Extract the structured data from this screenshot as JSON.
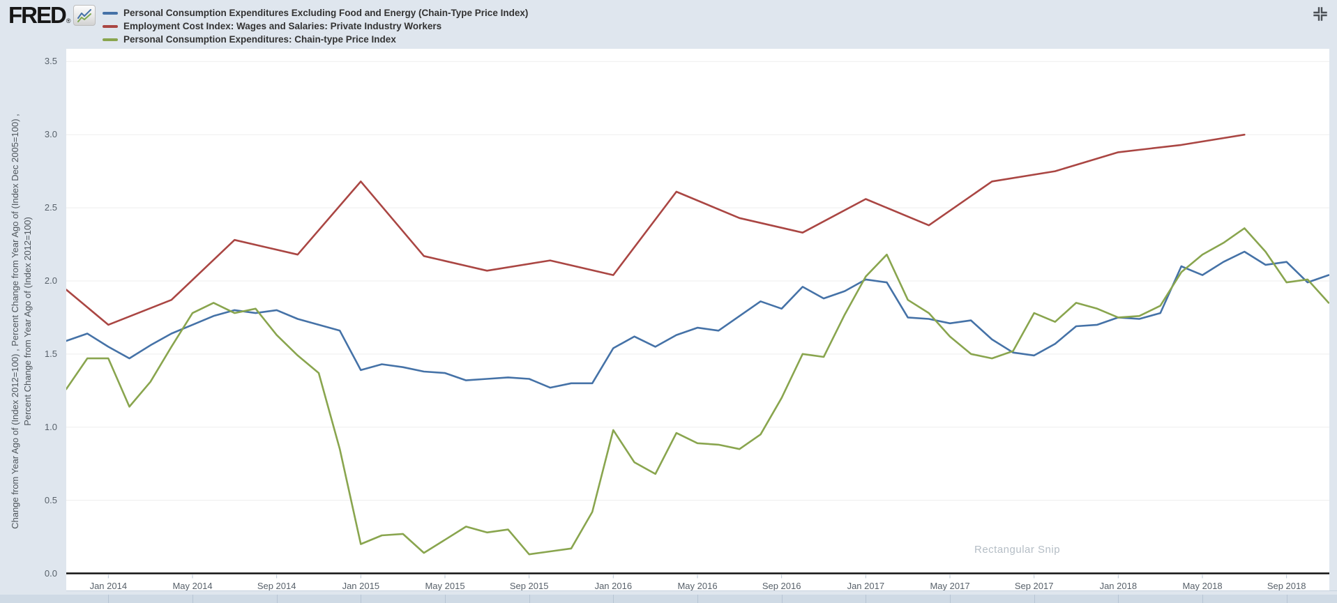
{
  "page": {
    "background": "#dfe6ee",
    "plot_background": "#ffffff",
    "gridline_color": "#ededed",
    "axis_line_color": "#111111"
  },
  "header": {
    "logo_text": "FRED",
    "logo_registered": "®"
  },
  "icons": {
    "top_right": "compress-arrows-icon",
    "logo_badge": "sparkline-chart-icon"
  },
  "watermark": {
    "text": "Rectangular Snip"
  },
  "y_axis": {
    "title_line1": "Change from Year Ago of (Index 2012=100) , Percent Change from Year Ago of (Index Dec 2005=100) ,",
    "title_line2": "Percent Change from Year Ago of (Index 2012=100)",
    "tick_labels": [
      "3.5",
      "3.0",
      "2.5",
      "2.0",
      "1.5",
      "1.0",
      "0.5",
      "0.0"
    ],
    "tick_values": [
      3.5,
      3.0,
      2.5,
      2.0,
      1.5,
      1.0,
      0.5,
      0.0
    ]
  },
  "x_axis": {
    "tick_labels": [
      "Jan 2014",
      "May 2014",
      "Sep 2014",
      "Jan 2015",
      "May 2015",
      "Sep 2015",
      "Jan 2016",
      "May 2016",
      "Sep 2016",
      "Jan 2017",
      "May 2017",
      "Sep 2017",
      "Jan 2018",
      "May 2018",
      "Sep 2018"
    ],
    "tick_month_offsets": [
      2,
      6,
      10,
      14,
      18,
      22,
      26,
      30,
      34,
      38,
      42,
      46,
      50,
      54,
      58
    ]
  },
  "chart_data": {
    "type": "line",
    "x_start": "2013-11",
    "x_end": "2018-11",
    "months_span": 60,
    "ylim": [
      0,
      3.5
    ],
    "grid": true,
    "legend_position": "top-left",
    "series": [
      {
        "name": "Personal Consumption Expenditures Excluding Food and Energy (Chain-Type Price Index)",
        "color": "#4572a7",
        "frequency": "monthly",
        "start_month_offset": 0,
        "values": [
          1.59,
          1.64,
          1.55,
          1.47,
          1.56,
          1.64,
          1.7,
          1.76,
          1.8,
          1.78,
          1.8,
          1.74,
          1.7,
          1.66,
          1.39,
          1.43,
          1.41,
          1.38,
          1.37,
          1.32,
          1.33,
          1.34,
          1.33,
          1.27,
          1.3,
          1.3,
          1.54,
          1.62,
          1.55,
          1.63,
          1.68,
          1.66,
          1.76,
          1.86,
          1.81,
          1.96,
          1.88,
          1.93,
          2.01,
          1.99,
          1.75,
          1.74,
          1.71,
          1.73,
          1.6,
          1.51,
          1.49,
          1.57,
          1.69,
          1.7,
          1.75,
          1.74,
          1.78,
          2.1,
          2.04,
          2.13,
          2.2,
          2.11,
          2.13,
          1.99,
          2.04
        ]
      },
      {
        "name": "Employment Cost Index: Wages and Salaries: Private Industry Workers",
        "color": "#aa4643",
        "frequency": "quarterly",
        "month_offsets": [
          0,
          2,
          5,
          8,
          11,
          14,
          17,
          20,
          23,
          26,
          29,
          32,
          35,
          38,
          41,
          44,
          47,
          50,
          53,
          56
        ],
        "values": [
          1.94,
          1.7,
          1.87,
          2.28,
          2.18,
          2.68,
          2.17,
          2.07,
          2.14,
          2.04,
          2.61,
          2.43,
          2.33,
          2.56,
          2.38,
          2.68,
          2.75,
          2.88,
          2.93,
          3.0
        ]
      },
      {
        "name": "Personal Consumption Expenditures: Chain-type Price Index",
        "color": "#89a54e",
        "frequency": "monthly",
        "start_month_offset": 0,
        "values": [
          1.26,
          1.47,
          1.47,
          1.14,
          1.31,
          1.55,
          1.78,
          1.85,
          1.78,
          1.81,
          1.63,
          1.49,
          1.37,
          0.85,
          0.2,
          0.26,
          0.27,
          0.14,
          0.23,
          0.32,
          0.28,
          0.3,
          0.13,
          0.15,
          0.17,
          0.42,
          0.98,
          0.76,
          0.68,
          0.96,
          0.89,
          0.88,
          0.85,
          0.95,
          1.2,
          1.5,
          1.48,
          1.77,
          2.03,
          2.18,
          1.87,
          1.78,
          1.62,
          1.5,
          1.47,
          1.52,
          1.78,
          1.72,
          1.85,
          1.81,
          1.75,
          1.76,
          1.83,
          2.06,
          2.18,
          2.26,
          2.36,
          2.2,
          1.99,
          2.01,
          1.85
        ]
      }
    ]
  }
}
